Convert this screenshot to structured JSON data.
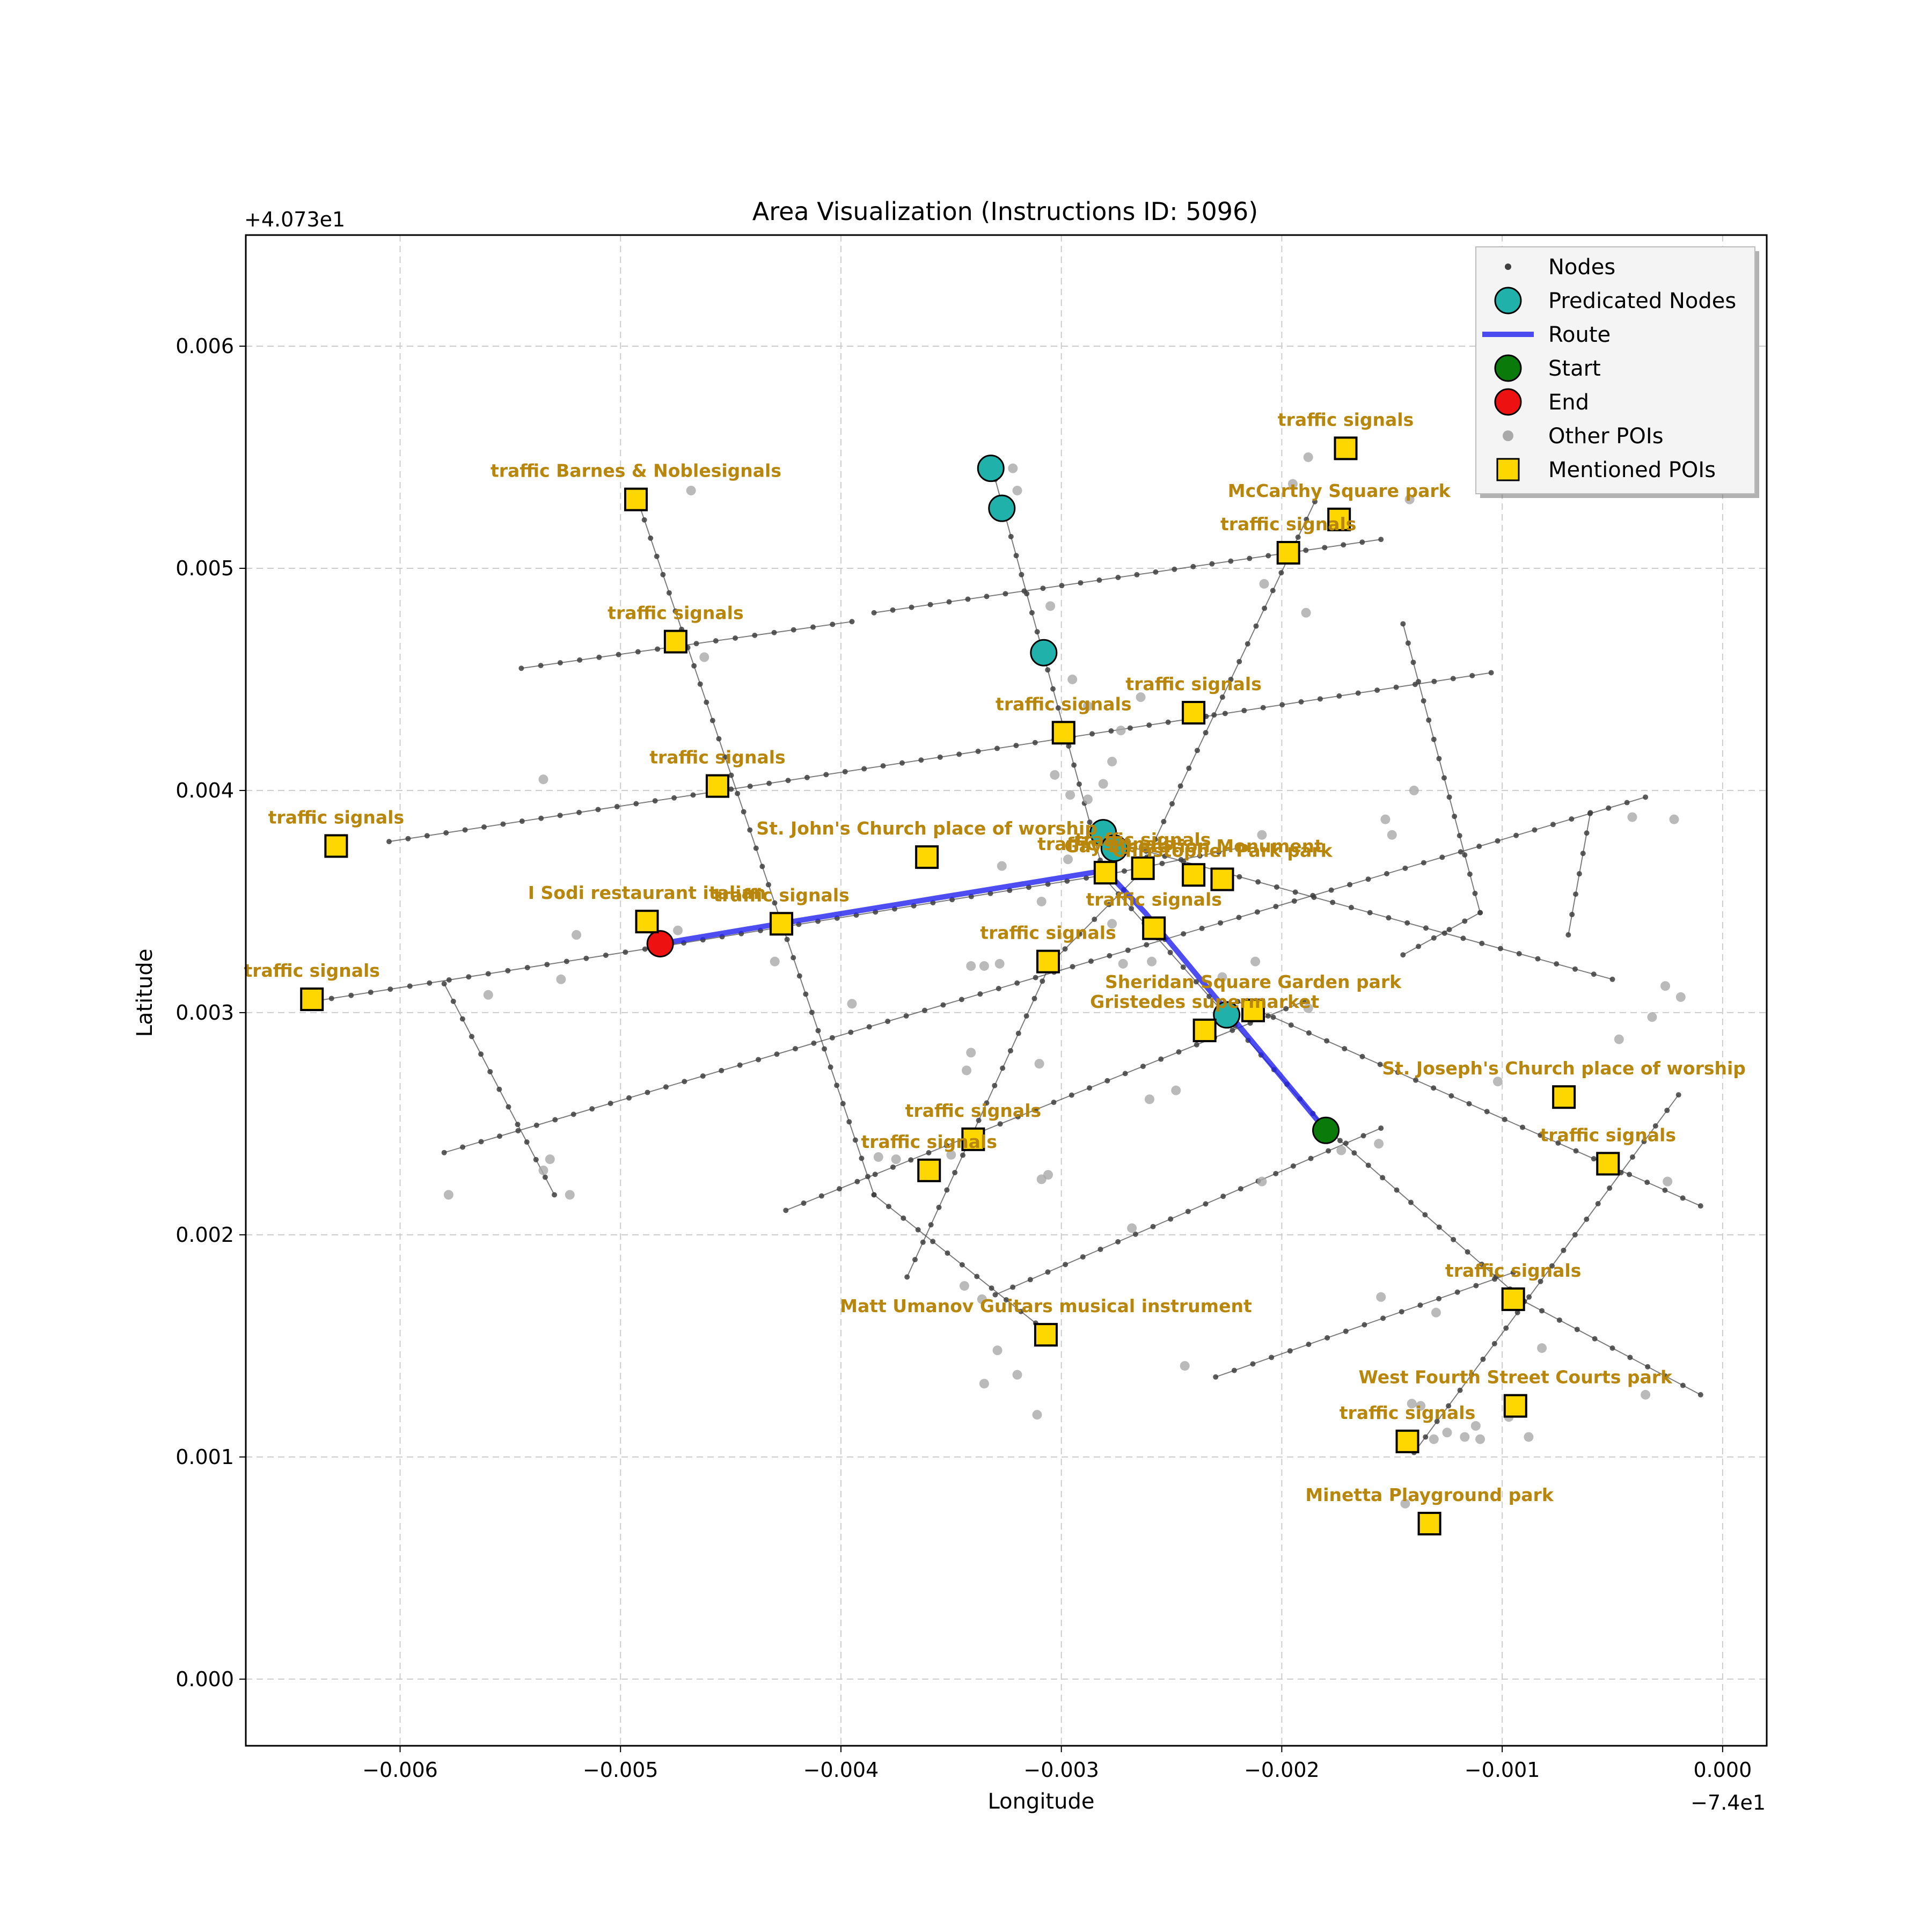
{
  "chart_data": {
    "type": "scatter",
    "title": "Area Visualization (Instructions ID: 5096)",
    "xlabel": "Longitude",
    "ylabel": "Latitude",
    "x_offset_label": "−7.4e1",
    "y_offset_label": "+4.073e1",
    "xlim": [
      -0.0067,
      0.0002
    ],
    "ylim": [
      -0.0003,
      0.0065
    ],
    "grid": true,
    "x_ticks": [
      -0.006,
      -0.005,
      -0.004,
      -0.003,
      -0.002,
      -0.001,
      0.0
    ],
    "x_tick_labels": [
      "−0.006",
      "−0.005",
      "−0.004",
      "−0.003",
      "−0.002",
      "−0.001",
      "0.000"
    ],
    "y_ticks": [
      0.0,
      0.001,
      0.002,
      0.003,
      0.004,
      0.005,
      0.006
    ],
    "y_tick_labels": [
      "0.000",
      "0.001",
      "0.002",
      "0.003",
      "0.004",
      "0.005",
      "0.006"
    ],
    "legend": {
      "placement": "top-right",
      "entries": [
        "Nodes",
        "Predicated Nodes",
        "Route",
        "Start",
        "End",
        "Other POIs",
        "Mentioned POIs"
      ]
    },
    "colors": {
      "nodes": "#404040",
      "predicated": "#20b2aa",
      "route": "#2020ee",
      "start": "#0a7a0a",
      "end": "#ee1111",
      "other_poi": "#a9a9a9",
      "mentioned_fill": "#ffd700",
      "label": "#b8860b",
      "grid": "#cccccc"
    },
    "streets": [
      [
        [
          -0.00545,
          0.00455
        ],
        [
          -0.00395,
          0.00476
        ]
      ],
      [
        [
          -0.00385,
          0.0048
        ],
        [
          -0.00155,
          0.00513
        ]
      ],
      [
        [
          -0.00605,
          0.00377
        ],
        [
          -0.00105,
          0.00453
        ]
      ],
      [
        [
          -0.0064,
          0.00305
        ],
        [
          -0.0048,
          0.0033
        ]
      ],
      [
        [
          -0.0048,
          0.0033
        ],
        [
          -0.0028,
          0.00362
        ]
      ],
      [
        [
          -0.0028,
          0.00362
        ],
        [
          -0.0022,
          0.00374
        ]
      ],
      [
        [
          -0.0058,
          0.00237
        ],
        [
          -0.00035,
          0.00397
        ]
      ],
      [
        [
          -0.00425,
          0.00211
        ],
        [
          -0.0019,
          0.00305
        ]
      ],
      [
        [
          -0.0033,
          0.00173
        ],
        [
          -0.00155,
          0.00248
        ]
      ],
      [
        [
          -0.0023,
          0.00136
        ],
        [
          -0.00095,
          0.00183
        ]
      ],
      [
        [
          -0.00492,
          0.0053
        ],
        [
          -0.00385,
          0.00218
        ]
      ],
      [
        [
          -0.00385,
          0.00218
        ],
        [
          -0.00305,
          0.00155
        ]
      ],
      [
        [
          -0.0033,
          0.0054
        ],
        [
          -0.0028,
          0.0036
        ]
      ],
      [
        [
          -0.0028,
          0.0036
        ],
        [
          -0.0018,
          0.00248
        ]
      ],
      [
        [
          -0.0018,
          0.00248
        ],
        [
          -0.0009,
          0.0017
        ]
      ],
      [
        [
          -0.0009,
          0.0017
        ],
        [
          -0.0001,
          0.00128
        ]
      ],
      [
        [
          -0.00185,
          0.0053
        ],
        [
          -0.00265,
          0.00362
        ]
      ],
      [
        [
          -0.00265,
          0.00362
        ],
        [
          -0.00305,
          0.00322
        ]
      ],
      [
        [
          -0.00305,
          0.00322
        ],
        [
          -0.0037,
          0.00181
        ]
      ],
      [
        [
          -0.0058,
          0.00313
        ],
        [
          -0.0053,
          0.00218
        ]
      ],
      [
        [
          -0.00145,
          0.00475
        ],
        [
          -0.0011,
          0.00345
        ]
      ],
      [
        [
          -0.0027,
          0.00375
        ],
        [
          -0.0005,
          0.00315
        ]
      ],
      [
        [
          -0.0022,
          0.00305
        ],
        [
          -0.0001,
          0.00213
        ]
      ],
      [
        [
          -0.0002,
          0.00263
        ],
        [
          -0.0014,
          0.00102
        ]
      ],
      [
        [
          -0.00145,
          0.00326
        ],
        [
          -0.0011,
          0.00345
        ]
      ],
      [
        [
          -0.0007,
          0.00335
        ],
        [
          -0.0006,
          0.0039
        ]
      ]
    ],
    "route": [
      [
        -0.00482,
        0.00331
      ],
      [
        -0.00428,
        0.0034
      ],
      [
        -0.0028,
        0.00364
      ],
      [
        -0.00262,
        0.00345
      ],
      [
        -0.0018,
        0.00247
      ]
    ],
    "predicated_nodes": [
      [
        -0.00332,
        0.00545
      ],
      [
        -0.00327,
        0.00527
      ],
      [
        -0.00308,
        0.00462
      ],
      [
        -0.00281,
        0.00381
      ],
      [
        -0.00276,
        0.00374
      ],
      [
        -0.00225,
        0.00299
      ]
    ],
    "start": [
      -0.0018,
      0.00247
    ],
    "end": [
      -0.00482,
      0.00331
    ],
    "other_pois": [
      [
        -0.00468,
        0.00535
      ],
      [
        -0.00322,
        0.00545
      ],
      [
        -0.0032,
        0.00535
      ],
      [
        -0.00305,
        0.00483
      ],
      [
        -0.00208,
        0.00493
      ],
      [
        -0.00188,
        0.0055
      ],
      [
        -0.00195,
        0.00538
      ],
      [
        -0.00189,
        0.0048
      ],
      [
        -0.00142,
        0.00531
      ],
      [
        -0.00295,
        0.0045
      ],
      [
        -0.00288,
        0.00438
      ],
      [
        -0.00264,
        0.00442
      ],
      [
        -0.00462,
        0.0046
      ],
      [
        -0.00535,
        0.00405
      ],
      [
        -0.00303,
        0.00407
      ],
      [
        -0.00273,
        0.00427
      ],
      [
        -0.00281,
        0.00403
      ],
      [
        -0.00296,
        0.00398
      ],
      [
        -0.00277,
        0.00413
      ],
      [
        -0.0014,
        0.004
      ],
      [
        -0.0015,
        0.0038
      ],
      [
        -0.00153,
        0.00387
      ],
      [
        -0.00209,
        0.0038
      ],
      [
        -0.00288,
        0.00396
      ],
      [
        -0.00297,
        0.00369
      ],
      [
        -0.00327,
        0.00366
      ],
      [
        -0.00309,
        0.0035
      ],
      [
        -0.00277,
        0.0034
      ],
      [
        -0.00485,
        0.00337
      ],
      [
        -0.00474,
        0.00337
      ],
      [
        -0.0052,
        0.00335
      ],
      [
        -0.0043,
        0.00323
      ],
      [
        -0.00395,
        0.00304
      ],
      [
        -0.00527,
        0.00315
      ],
      [
        -0.0056,
        0.00308
      ],
      [
        -0.00341,
        0.00321
      ],
      [
        -0.00328,
        0.00322
      ],
      [
        -0.00335,
        0.00321
      ],
      [
        -0.00259,
        0.00323
      ],
      [
        -0.00272,
        0.00322
      ],
      [
        -0.00227,
        0.00316
      ],
      [
        -0.00212,
        0.00323
      ],
      [
        -0.00188,
        0.00302
      ],
      [
        -0.00341,
        0.00282
      ],
      [
        -0.00343,
        0.00274
      ],
      [
        -0.0031,
        0.00277
      ],
      [
        -0.0026,
        0.00261
      ],
      [
        -0.00248,
        0.00265
      ],
      [
        -0.00102,
        0.00269
      ],
      [
        -0.0035,
        0.00236
      ],
      [
        -0.00383,
        0.00235
      ],
      [
        -0.00375,
        0.00234
      ],
      [
        -0.00309,
        0.00225
      ],
      [
        -0.00306,
        0.00227
      ],
      [
        -0.00209,
        0.00224
      ],
      [
        -0.00156,
        0.00241
      ],
      [
        -0.00173,
        0.00238
      ],
      [
        -0.00032,
        0.00298
      ],
      [
        -0.00026,
        0.00312
      ],
      [
        -0.00047,
        0.00288
      ],
      [
        -0.00019,
        0.00307
      ],
      [
        -0.00025,
        0.00224
      ],
      [
        -0.00082,
        0.00149
      ],
      [
        -0.00155,
        0.00172
      ],
      [
        -0.0013,
        0.00165
      ],
      [
        -0.00268,
        0.00203
      ],
      [
        -0.00344,
        0.00177
      ],
      [
        -0.00336,
        0.00171
      ],
      [
        -0.00329,
        0.00148
      ],
      [
        -0.0032,
        0.00137
      ],
      [
        -0.00335,
        0.00133
      ],
      [
        -0.00311,
        0.00119
      ],
      [
        -0.00244,
        0.00141
      ],
      [
        -0.00141,
        0.00124
      ],
      [
        -0.00137,
        0.00123
      ],
      [
        -0.00125,
        0.00111
      ],
      [
        -0.00117,
        0.00109
      ],
      [
        -0.0011,
        0.00108
      ],
      [
        -0.00094,
        0.00122
      ],
      [
        -0.00097,
        0.00118
      ],
      [
        -0.00112,
        0.00114
      ],
      [
        -0.00088,
        0.00109
      ],
      [
        -0.00131,
        0.00108
      ],
      [
        -0.00035,
        0.00128
      ],
      [
        -0.00144,
        0.00079
      ],
      [
        -0.00532,
        0.00234
      ],
      [
        -0.00535,
        0.00229
      ],
      [
        -0.00523,
        0.00218
      ],
      [
        -0.00578,
        0.00218
      ],
      [
        -0.00041,
        0.00388
      ],
      [
        -0.00022,
        0.00387
      ]
    ],
    "mentioned_pois": [
      {
        "label": "traffic Barnes & Noblesignals",
        "x": -0.00493,
        "y": 0.00531
      },
      {
        "label": "traffic signals",
        "x": -0.00171,
        "y": 0.00554
      },
      {
        "label": "McCarthy Square   park",
        "x": -0.00174,
        "y": 0.00522
      },
      {
        "label": "traffic signals",
        "x": -0.00197,
        "y": 0.00507
      },
      {
        "label": "traffic signals",
        "x": -0.00475,
        "y": 0.00467
      },
      {
        "label": "traffic signals",
        "x": -0.0024,
        "y": 0.00435
      },
      {
        "label": "traffic signals",
        "x": -0.00299,
        "y": 0.00426
      },
      {
        "label": "traffic signals",
        "x": -0.00456,
        "y": 0.00402
      },
      {
        "label": "traffic signals",
        "x": -0.00629,
        "y": 0.00375
      },
      {
        "label": "St. John's Church place of worship",
        "x": -0.00361,
        "y": 0.0037
      },
      {
        "label": "traffic signals",
        "x": -0.00263,
        "y": 0.00365
      },
      {
        "label": "traffic signals",
        "x": -0.0028,
        "y": 0.00363
      },
      {
        "label": "Gay Liberation Monument",
        "x": -0.0024,
        "y": 0.00362
      },
      {
        "label": "Christopher Park   park",
        "x": -0.00227,
        "y": 0.0036
      },
      {
        "label": "I Sodi restaurant italian",
        "x": -0.00488,
        "y": 0.00341
      },
      {
        "label": "traffic signals",
        "x": -0.00427,
        "y": 0.0034
      },
      {
        "label": "traffic signals",
        "x": -0.00258,
        "y": 0.00338
      },
      {
        "label": "traffic signals",
        "x": -0.00306,
        "y": 0.00323
      },
      {
        "label": "traffic signals",
        "x": -0.0064,
        "y": 0.00306
      },
      {
        "label": "Sheridan Square Garden   park",
        "x": -0.00213,
        "y": 0.00301
      },
      {
        "label": "Gristedes      supermarket",
        "x": -0.00235,
        "y": 0.00292
      },
      {
        "label": "St. Joseph's Church place of worship",
        "x": -0.00072,
        "y": 0.00262
      },
      {
        "label": "traffic signals",
        "x": -0.00052,
        "y": 0.00232
      },
      {
        "label": "traffic signals",
        "x": -0.0034,
        "y": 0.00243
      },
      {
        "label": "traffic signals",
        "x": -0.0036,
        "y": 0.00229
      },
      {
        "label": "traffic signals",
        "x": -0.00095,
        "y": 0.00171
      },
      {
        "label": "Matt Umanov Guitars     musical instrument",
        "x": -0.00307,
        "y": 0.00155
      },
      {
        "label": "West Fourth Street Courts   park",
        "x": -0.00094,
        "y": 0.00123
      },
      {
        "label": "traffic signals",
        "x": -0.00143,
        "y": 0.00107
      },
      {
        "label": "Minetta Playground   park",
        "x": -0.00133,
        "y": 0.0007
      }
    ]
  }
}
